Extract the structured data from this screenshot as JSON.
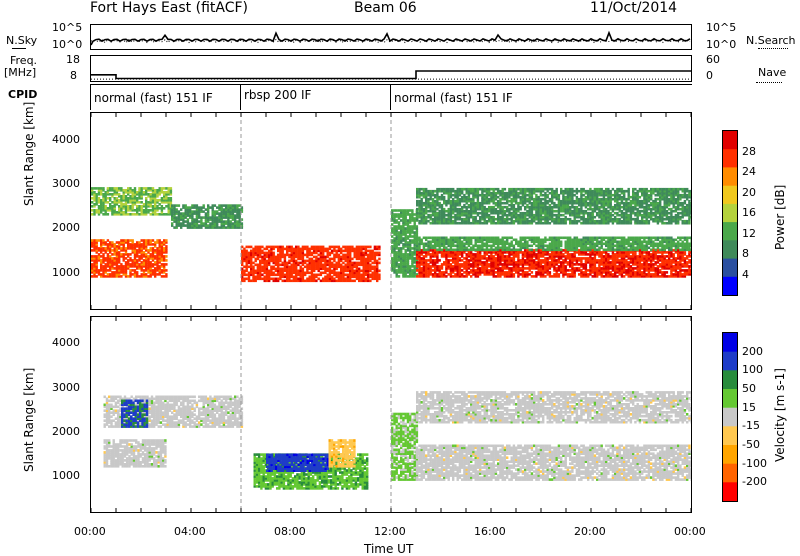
{
  "header": {
    "station": "Fort Hays East (fitACF)",
    "beam": "Beam 06",
    "date": "11/Oct/2014"
  },
  "noise_panel": {
    "left_label": "N.Sky",
    "right_label": "N.Search",
    "left_ticks": [
      "10^5",
      "10^0"
    ],
    "right_ticks": [
      "10^5",
      "10^0"
    ]
  },
  "freq_panel": {
    "left_label_1": "Freq.",
    "left_label_2": "[MHz]",
    "right_label": "Nave",
    "left_ticks": [
      "18",
      "8"
    ],
    "right_ticks": [
      "60",
      "0"
    ],
    "freq_steps": [
      {
        "from": 0.0,
        "to": 1.0,
        "value": 10.5
      },
      {
        "from": 1.0,
        "to": 13.0,
        "value": 9.0
      },
      {
        "from": 13.0,
        "to": 24.0,
        "value": 12.0
      }
    ],
    "nave_level": 4.4
  },
  "cpid_panel": {
    "label": "CPID",
    "segments": [
      {
        "from": 0,
        "to": 6,
        "label": "normal (fast) 151 IF"
      },
      {
        "from": 6,
        "to": 12,
        "label": "rbsp 200 IF"
      },
      {
        "from": 12,
        "to": 24,
        "label": "normal (fast) 151 IF"
      }
    ]
  },
  "chart_data": [
    {
      "type": "heatmap",
      "panel": "power",
      "ylabel": "Slant Range [km]",
      "xlabel": "Time UT",
      "x_ticks": [
        "00:00",
        "04:00",
        "08:00",
        "12:00",
        "16:00",
        "20:00",
        "00:00"
      ],
      "xlim": [
        0,
        24
      ],
      "ylim": [
        180,
        4600
      ],
      "y_ticks": [
        1000,
        2000,
        3000,
        4000
      ],
      "colorbar": {
        "label": "Power [dB]",
        "ticks": [
          "4",
          "8",
          "12",
          "16",
          "20",
          "24",
          "28"
        ],
        "range": [
          0,
          32
        ]
      },
      "regions": [
        {
          "t0": 0.0,
          "t1": 3.0,
          "r0": 900,
          "r1": 1750,
          "v": 26
        },
        {
          "t0": 0.0,
          "t1": 3.2,
          "r0": 2300,
          "r1": 2900,
          "v": 14
        },
        {
          "t0": 3.2,
          "t1": 6.0,
          "r0": 2000,
          "r1": 2500,
          "v": 10
        },
        {
          "t0": 6.0,
          "t1": 11.5,
          "r0": 800,
          "r1": 1600,
          "v": 27
        },
        {
          "t0": 12.0,
          "t1": 13.0,
          "r0": 900,
          "r1": 2400,
          "v": 12
        },
        {
          "t0": 13.0,
          "t1": 24.0,
          "r0": 900,
          "r1": 1500,
          "v": 28
        },
        {
          "t0": 13.0,
          "t1": 24.0,
          "r0": 1500,
          "r1": 1800,
          "v": 12
        },
        {
          "t0": 13.0,
          "t1": 24.0,
          "r0": 2100,
          "r1": 2900,
          "v": 10
        }
      ]
    },
    {
      "type": "heatmap",
      "panel": "velocity",
      "ylabel": "Slant Range [km]",
      "xlabel": "Time UT",
      "x_ticks": [
        "00:00",
        "04:00",
        "08:00",
        "12:00",
        "16:00",
        "20:00",
        "00:00"
      ],
      "xlim": [
        0,
        24
      ],
      "ylim": [
        180,
        4600
      ],
      "y_ticks": [
        1000,
        2000,
        3000,
        4000
      ],
      "colorbar": {
        "label": "Velocity [m s-1]",
        "ticks": [
          "200",
          "100",
          "50",
          "15",
          "-15",
          "-50",
          "-100",
          "-200"
        ],
        "range": [
          -250,
          250
        ]
      },
      "regions": [
        {
          "t0": 0.5,
          "t1": 6.0,
          "r0": 2100,
          "r1": 2800,
          "v": 0
        },
        {
          "t0": 1.2,
          "t1": 2.2,
          "r0": 2100,
          "r1": 2700,
          "v": 150
        },
        {
          "t0": 0.5,
          "t1": 3.0,
          "r0": 1200,
          "r1": 1800,
          "v": 0
        },
        {
          "t0": 6.5,
          "t1": 11.0,
          "r0": 700,
          "r1": 1500,
          "v": 70
        },
        {
          "t0": 7.0,
          "t1": 9.5,
          "r0": 1100,
          "r1": 1500,
          "v": 170
        },
        {
          "t0": 9.5,
          "t1": 10.5,
          "r0": 1200,
          "r1": 1800,
          "v": -60
        },
        {
          "t0": 12.0,
          "t1": 13.0,
          "r0": 900,
          "r1": 2400,
          "v": 40
        },
        {
          "t0": 13.0,
          "t1": 24.0,
          "r0": 900,
          "r1": 1700,
          "v": 0
        },
        {
          "t0": 13.0,
          "t1": 24.0,
          "r0": 2200,
          "r1": 2900,
          "v": 0
        }
      ]
    }
  ],
  "colors": {
    "power_scale": [
      "#0000ff",
      "#2a4fa0",
      "#3f8a5a",
      "#4aa84a",
      "#b4d23c",
      "#f0c81e",
      "#ff8c00",
      "#ff3000",
      "#e00000"
    ],
    "velocity_scale": [
      "#ff0000",
      "#ff6400",
      "#ffa500",
      "#ffc850",
      "#c8c8c8",
      "#64c832",
      "#288c3c",
      "#1e3cc8",
      "#0000e6"
    ]
  }
}
